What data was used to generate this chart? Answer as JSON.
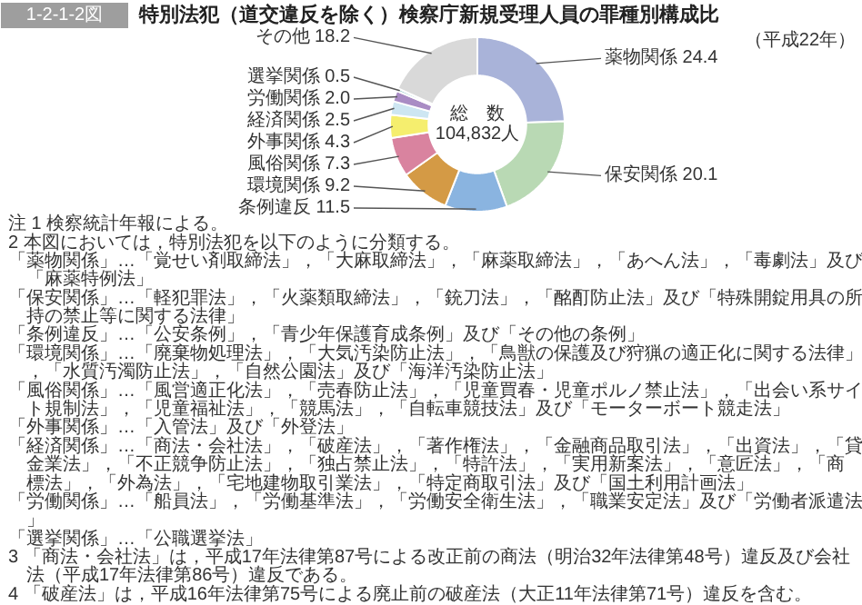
{
  "chart_data": {
    "type": "donut",
    "title": "特別法犯（道交違反を除く）検察庁新規受理人員の罪種別構成比",
    "subtitle": "（平成22年）",
    "categories": [
      "薬物関係",
      "保安関係",
      "条例違反",
      "環境関係",
      "風俗関係",
      "外事関係",
      "経済関係",
      "労働関係",
      "選挙関係",
      "その他"
    ],
    "values": [
      24.4,
      20.1,
      11.5,
      9.2,
      7.3,
      4.3,
      2.5,
      2.0,
      0.5,
      18.2
    ],
    "colors": [
      "#a9b3d9",
      "#b9d9b4",
      "#8ab4e0",
      "#d49a45",
      "#d9839f",
      "#f5ee6e",
      "#cde6f2",
      "#a98cc4",
      "#7fbfbf",
      "#d9d9d9"
    ],
    "value_labels": [
      "24.4",
      "20.1",
      "11.5",
      "9.2",
      "7.3",
      "4.3",
      "2.5",
      "2.0",
      "0.5",
      "18.2"
    ],
    "annotations": [
      "1-2-1-2図",
      "総　数\n104,832人",
      "注 1 検察統計年報による。",
      "2 本図においては，特別法犯を以下のように分類する。",
      "「薬物関係」…「覚せい剤取締法」，「大麻取締法」，「麻薬取締法」，「あへん法」，「毒劇法」及び「麻薬特例法」",
      "「保安関係」…「軽犯罪法」，「火薬類取締法」，「銃刀法」，「酩酊防止法」及び「特殊開錠用具の所持の禁止等に関する法律」",
      "「条例違反」…「公安条例」，「青少年保護育成条例」及び「その他の条例」",
      "「環境関係」…「廃棄物処理法」，「大気汚染防止法」，「鳥獣の保護及び狩猟の適正化に関する法律」，「水質汚濁防止法」，「自然公園法」及び「海洋汚染防止法」",
      "「風俗関係」…「風営適正化法」，「売春防止法」，「児童買春・児童ポルノ禁止法」，「出会い系サイト規制法」，「児童福祉法」，「競馬法」，「自転車競技法」及び「モーターボート競走法」",
      "「外事関係」…「入管法」及び「外登法」",
      "「経済関係」…「商法・会社法」，「破産法」，「著作権法」，「金融商品取引法」，「出資法」，「貸金業法」，「不正競争防止法」，「独占禁止法」，「特許法」，「実用新案法」，「意匠法」，「商標法」，「外為法」，「宅地建物取引業法」，「特定商取引法」及び「国土利用計画法」",
      "「労働関係」…「船員法」，「労働基準法」，「労働安全衛生法」，「職業安定法」及び「労働者派遣法」",
      "「選挙関係」…「公職選挙法」",
      "3 「商法・会社法」は，平成17年法律第87号による改正前の商法（明治32年法律第48号）違反及び会社法（平成17年法律第86号）違反である。",
      "4 「破産法」は，平成16年法律第75号による廃止前の破産法（大正11年法律第71号）違反を含む。"
    ]
  }
}
